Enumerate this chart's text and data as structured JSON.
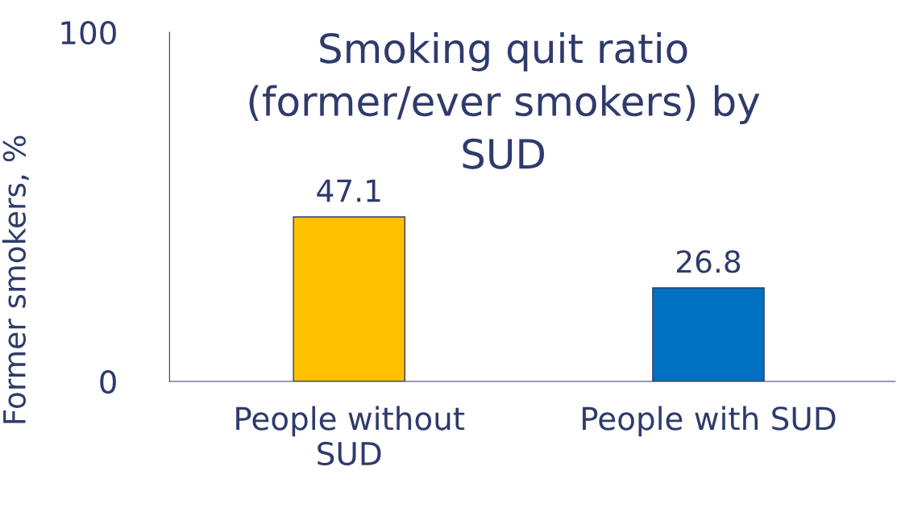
{
  "chart_data": {
    "type": "bar",
    "title": "Smoking quit ratio\n(former/ever smokers) by\nSUD",
    "ylabel": "Former smokers, %",
    "categories": [
      "People without\nSUD",
      "People with SUD"
    ],
    "values": [
      47.1,
      26.8
    ],
    "colors": [
      "#ffc000",
      "#0070c0"
    ],
    "ylim": [
      0,
      100
    ],
    "yticks": [
      0,
      100
    ],
    "data_labels": true,
    "grid": false,
    "legend": false
  }
}
